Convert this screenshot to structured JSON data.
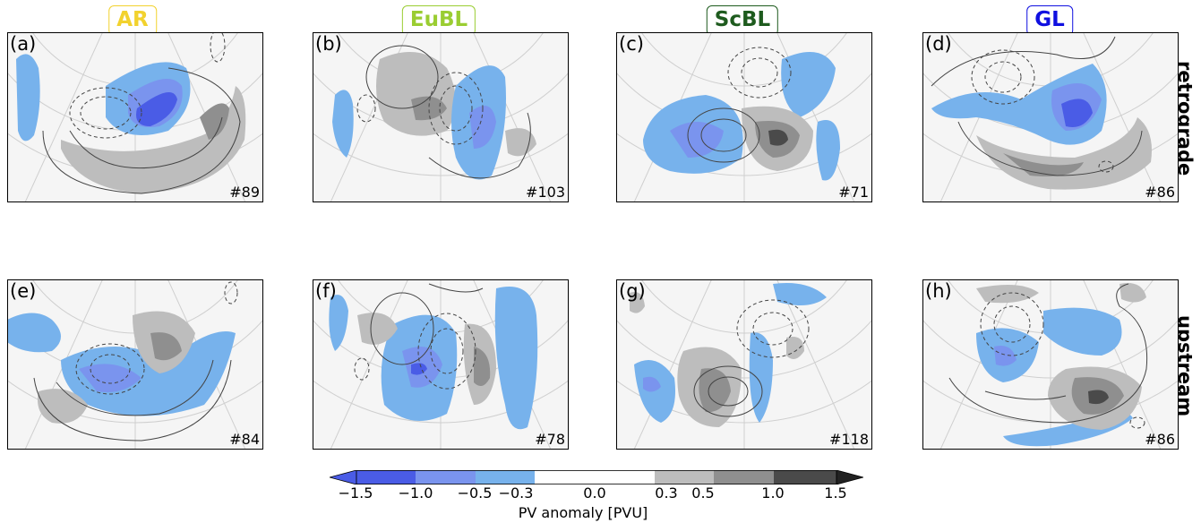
{
  "columns": [
    {
      "label": "AR",
      "color": "#f2d22e"
    },
    {
      "label": "EuBL",
      "color": "#9acd32"
    },
    {
      "label": "ScBL",
      "color": "#1e5b1e"
    },
    {
      "label": "GL",
      "color": "#1010e0"
    }
  ],
  "rows": [
    {
      "label": "retrograde"
    },
    {
      "label": "upstream"
    }
  ],
  "panels": [
    {
      "letter": "(a)",
      "count": "#89"
    },
    {
      "letter": "(b)",
      "count": "#103"
    },
    {
      "letter": "(c)",
      "count": "#71"
    },
    {
      "letter": "(d)",
      "count": "#86"
    },
    {
      "letter": "(e)",
      "count": "#84"
    },
    {
      "letter": "(f)",
      "count": "#78"
    },
    {
      "letter": "(g)",
      "count": "#118"
    },
    {
      "letter": "(h)",
      "count": "#86"
    }
  ],
  "colorbar": {
    "label": "PV anomaly [PVU]",
    "ticks": [
      "−1.5",
      "−1.0",
      "−0.5",
      "−0.3",
      "0.0",
      "0.3",
      "0.5",
      "1.0",
      "1.5"
    ],
    "colors": {
      "neg_strong": "#4a5ce6",
      "neg_mid": "#7a94ee",
      "neg_weak": "#77b2ec",
      "neutral": "#ffffff",
      "pos_weak": "#bdbdbd",
      "pos_mid": "#8f8f8f",
      "pos_strong": "#4a4a4a"
    }
  }
}
